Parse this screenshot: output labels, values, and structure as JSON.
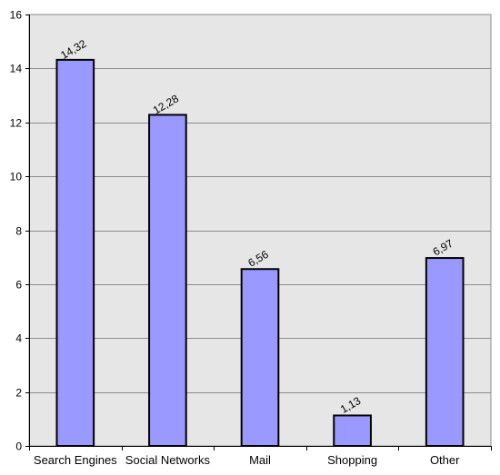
{
  "chart_data": {
    "type": "bar",
    "categories": [
      "Search Engines",
      "Social Networks",
      "Mail",
      "Shopping",
      "Other"
    ],
    "values": [
      14.32,
      12.28,
      6.56,
      1.13,
      6.97
    ],
    "data_labels": [
      "14,32",
      "12,28",
      "6,56",
      "1,13",
      "6,97"
    ],
    "ylim": [
      0,
      16
    ],
    "y_ticks": [
      0,
      2,
      4,
      6,
      8,
      10,
      12,
      14,
      16
    ],
    "grid": true,
    "legend": "none",
    "colors": {
      "bar_fill": "#9999ff",
      "bar_stroke": "#000000",
      "plot_background": "#e6e6e6",
      "grid_line": "#8c8c8c"
    }
  }
}
